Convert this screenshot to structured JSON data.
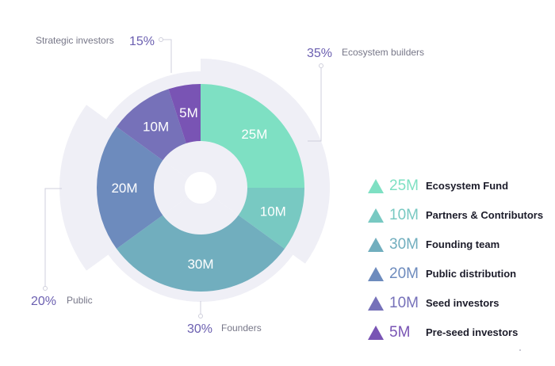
{
  "chart_data": {
    "type": "pie",
    "unit": "M",
    "slices": [
      {
        "label": "25M",
        "value": 25,
        "color": "#7ee0c3",
        "legend_value": "25M",
        "legend_name": "Ecosystem Fund"
      },
      {
        "label": "10M",
        "value": 10,
        "color": "#78c9c2",
        "legend_value": "10M",
        "legend_name": "Partners & Contributors"
      },
      {
        "label": "30M",
        "value": 30,
        "color": "#71aebe",
        "legend_value": "30M",
        "legend_name": "Founding team"
      },
      {
        "label": "20M",
        "value": 20,
        "color": "#6d8bbd",
        "legend_value": "20M",
        "legend_name": "Public distribution"
      },
      {
        "label": "10M",
        "value": 10,
        "color": "#7671b9",
        "legend_value": "10M",
        "legend_name": "Seed investors"
      },
      {
        "label": "5M",
        "value": 5,
        "color": "#7954b4",
        "legend_value": "5M",
        "legend_name": "Pre-seed investors"
      }
    ],
    "groups": [
      {
        "percent": "35%",
        "name": "Ecosystem builders",
        "share": 0.35
      },
      {
        "percent": "30%",
        "name": "Founders",
        "share": 0.3
      },
      {
        "percent": "20%",
        "name": "Public",
        "share": 0.2
      },
      {
        "percent": "15%",
        "name": "Strategic investors",
        "share": 0.15
      }
    ],
    "colors": {
      "group_band": "#efeff6",
      "group_percent": "#6b5fb0",
      "group_name": "#777788",
      "leader": "#cfcfdc"
    }
  }
}
